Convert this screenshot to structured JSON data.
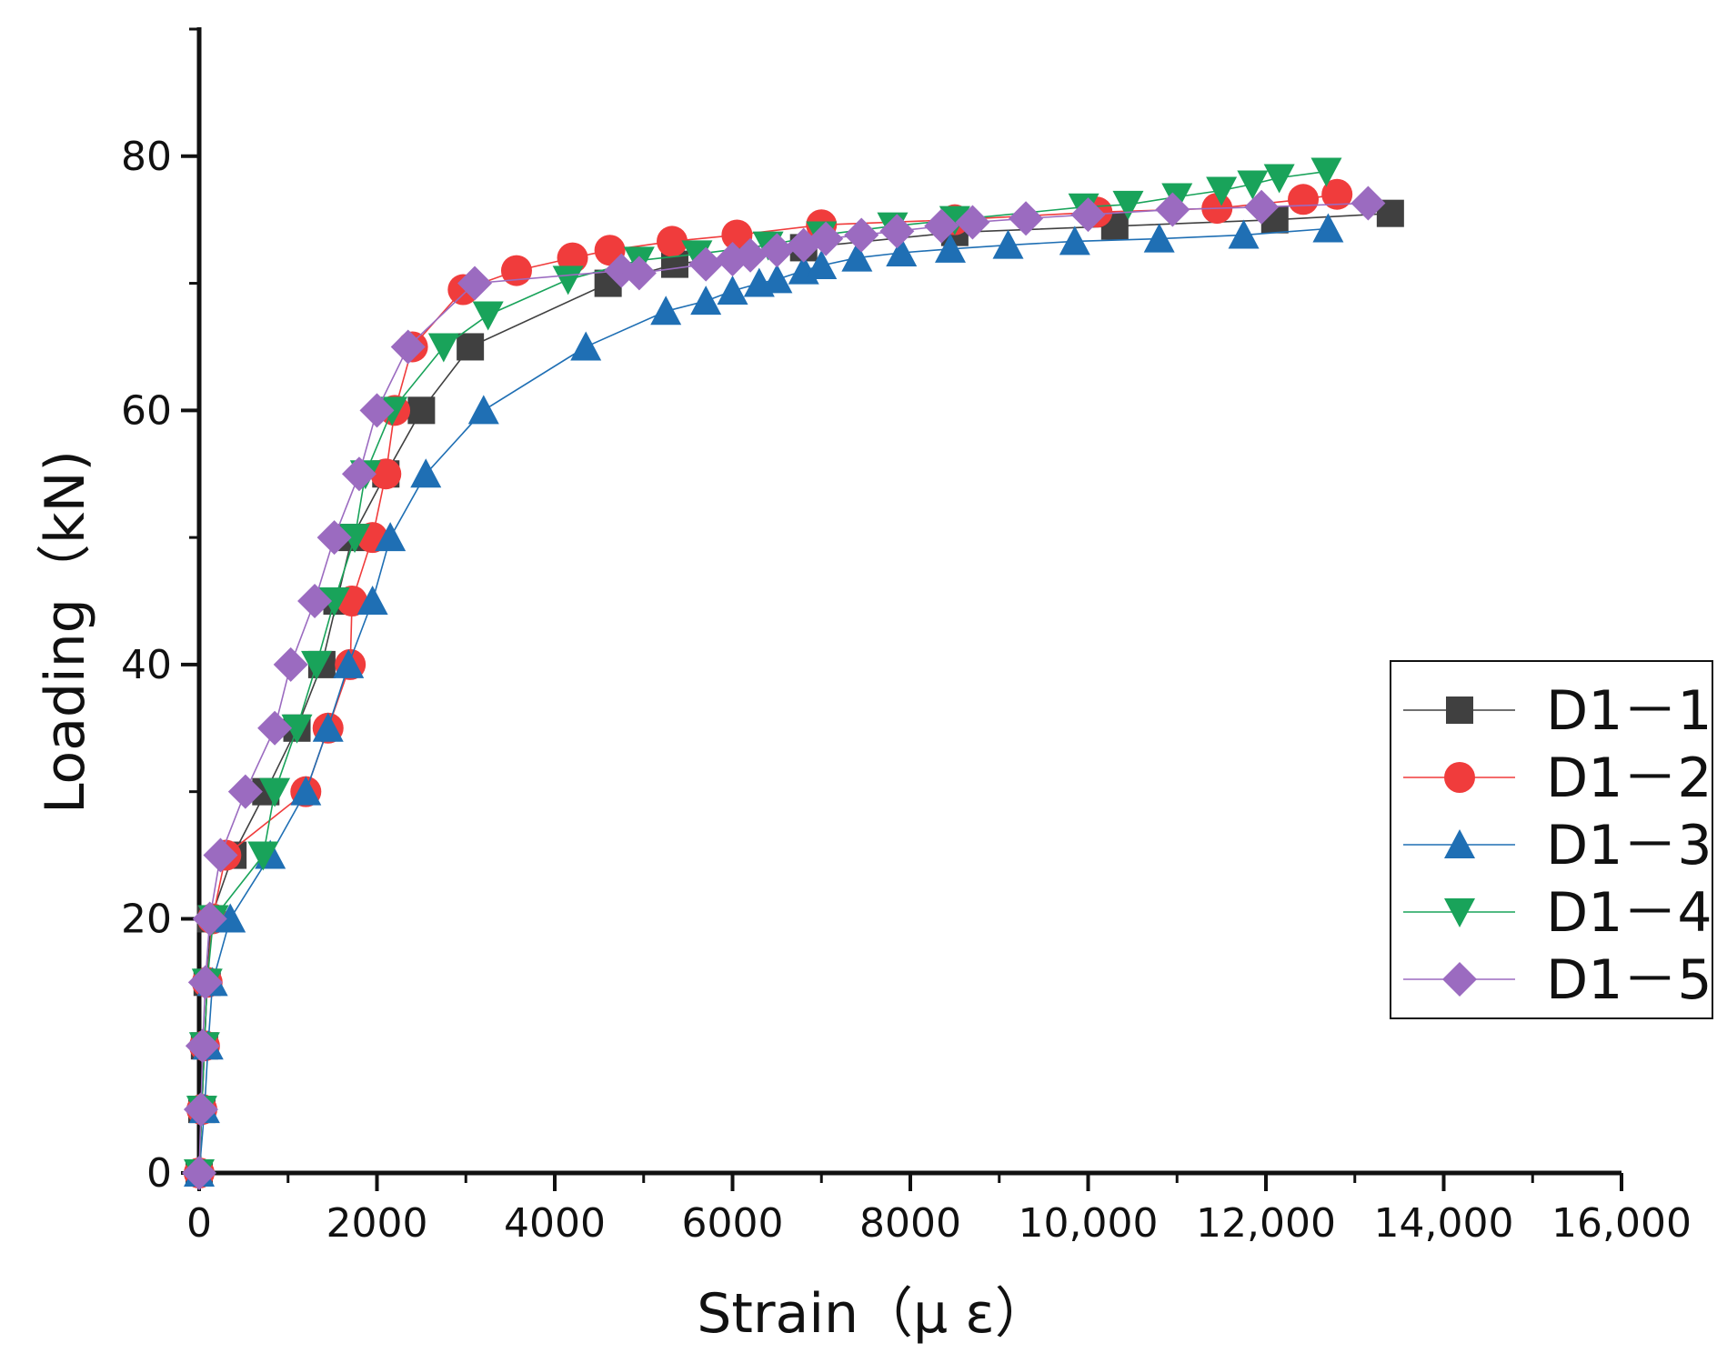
{
  "chart_data": {
    "type": "line",
    "title": "",
    "xlabel": "Strain（μ ε）",
    "ylabel": "Loading（kN)",
    "xlim": [
      0,
      16000
    ],
    "ylim": [
      0,
      90
    ],
    "xticks": [
      0,
      2000,
      4000,
      6000,
      8000,
      10000,
      12000,
      14000,
      16000
    ],
    "xtick_labels": [
      "0",
      "2000",
      "4000",
      "6000",
      "8000",
      "10,000",
      "12,000",
      "14,000",
      "16,000"
    ],
    "yticks": [
      0,
      20,
      40,
      60,
      80
    ],
    "ytick_labels": [
      "0",
      "20",
      "40",
      "60",
      "80"
    ],
    "grid": false,
    "legend_position": "right",
    "series": [
      {
        "name": "D1－1",
        "color": "#404040",
        "marker": "square",
        "points": [
          [
            0,
            0
          ],
          [
            30,
            5
          ],
          [
            60,
            10
          ],
          [
            90,
            15
          ],
          [
            130,
            20
          ],
          [
            380,
            25
          ],
          [
            750,
            30
          ],
          [
            1100,
            35
          ],
          [
            1380,
            40
          ],
          [
            1550,
            45
          ],
          [
            1720,
            50
          ],
          [
            2100,
            55
          ],
          [
            2500,
            60
          ],
          [
            3050,
            65
          ],
          [
            4600,
            70
          ],
          [
            5350,
            71.5
          ],
          [
            6800,
            72.8
          ],
          [
            8500,
            74
          ],
          [
            10300,
            74.5
          ],
          [
            12100,
            75
          ],
          [
            13400,
            75.5
          ]
        ]
      },
      {
        "name": "D1－2",
        "color": "#f03c3c",
        "marker": "circle",
        "points": [
          [
            0,
            0
          ],
          [
            30,
            5
          ],
          [
            60,
            10
          ],
          [
            90,
            15
          ],
          [
            150,
            20
          ],
          [
            300,
            25
          ],
          [
            1200,
            30
          ],
          [
            1450,
            35
          ],
          [
            1700,
            40
          ],
          [
            1720,
            45
          ],
          [
            1950,
            50
          ],
          [
            2100,
            55
          ],
          [
            2200,
            60
          ],
          [
            2400,
            65
          ],
          [
            2970,
            69.5
          ],
          [
            3570,
            71
          ],
          [
            4200,
            72
          ],
          [
            4620,
            72.6
          ],
          [
            5320,
            73.3
          ],
          [
            6050,
            73.8
          ],
          [
            7000,
            74.6
          ],
          [
            8500,
            75
          ],
          [
            10100,
            75.6
          ],
          [
            11450,
            75.9
          ],
          [
            12420,
            76.6
          ],
          [
            12800,
            77
          ]
        ]
      },
      {
        "name": "D1－3",
        "color": "#1f6fb4",
        "marker": "triangle-up",
        "points": [
          [
            0,
            0
          ],
          [
            60,
            5
          ],
          [
            100,
            10
          ],
          [
            150,
            15
          ],
          [
            350,
            20
          ],
          [
            800,
            25
          ],
          [
            1200,
            30
          ],
          [
            1450,
            35
          ],
          [
            1680,
            40
          ],
          [
            1950,
            45
          ],
          [
            2150,
            50
          ],
          [
            2550,
            55
          ],
          [
            3200,
            60
          ],
          [
            4350,
            65
          ],
          [
            5250,
            67.8
          ],
          [
            5700,
            68.6
          ],
          [
            6000,
            69.4
          ],
          [
            6300,
            70
          ],
          [
            6500,
            70.3
          ],
          [
            6800,
            71
          ],
          [
            7000,
            71.4
          ],
          [
            7400,
            72
          ],
          [
            7900,
            72.4
          ],
          [
            8450,
            72.7
          ],
          [
            9100,
            73
          ],
          [
            9850,
            73.3
          ],
          [
            10800,
            73.5
          ],
          [
            11750,
            73.8
          ],
          [
            12700,
            74.3
          ]
        ]
      },
      {
        "name": "D1－4",
        "color": "#19a35a",
        "marker": "triangle-down",
        "points": [
          [
            0,
            0
          ],
          [
            30,
            5
          ],
          [
            60,
            10
          ],
          [
            90,
            15
          ],
          [
            160,
            20
          ],
          [
            720,
            25
          ],
          [
            850,
            30
          ],
          [
            1100,
            35
          ],
          [
            1320,
            40
          ],
          [
            1520,
            45
          ],
          [
            1750,
            50
          ],
          [
            1870,
            55
          ],
          [
            2170,
            60
          ],
          [
            2750,
            65
          ],
          [
            3250,
            67.5
          ],
          [
            4150,
            70.3
          ],
          [
            4950,
            71.8
          ],
          [
            5600,
            72.3
          ],
          [
            6400,
            73
          ],
          [
            7000,
            73.8
          ],
          [
            7800,
            74.5
          ],
          [
            8500,
            75
          ],
          [
            9950,
            76
          ],
          [
            10450,
            76.2
          ],
          [
            11000,
            76.8
          ],
          [
            11500,
            77.3
          ],
          [
            11850,
            77.8
          ],
          [
            12150,
            78.3
          ],
          [
            12680,
            78.8
          ]
        ]
      },
      {
        "name": "D1－5",
        "color": "#9b6bc0",
        "marker": "diamond",
        "points": [
          [
            0,
            0
          ],
          [
            20,
            5
          ],
          [
            40,
            10
          ],
          [
            70,
            15
          ],
          [
            120,
            20
          ],
          [
            240,
            25
          ],
          [
            520,
            30
          ],
          [
            850,
            35
          ],
          [
            1030,
            40
          ],
          [
            1300,
            45
          ],
          [
            1520,
            50
          ],
          [
            1800,
            55
          ],
          [
            2000,
            60
          ],
          [
            2350,
            65
          ],
          [
            3100,
            70
          ],
          [
            4750,
            71
          ],
          [
            4950,
            70.8
          ],
          [
            5700,
            71.5
          ],
          [
            6000,
            71.9
          ],
          [
            6200,
            72.2
          ],
          [
            6500,
            72.6
          ],
          [
            6800,
            73
          ],
          [
            7050,
            73.5
          ],
          [
            7450,
            73.8
          ],
          [
            7850,
            74.1
          ],
          [
            8350,
            74.5
          ],
          [
            8700,
            74.8
          ],
          [
            9300,
            75.1
          ],
          [
            10000,
            75.4
          ],
          [
            10950,
            75.8
          ],
          [
            11950,
            76
          ],
          [
            13150,
            76.3
          ]
        ]
      }
    ]
  }
}
